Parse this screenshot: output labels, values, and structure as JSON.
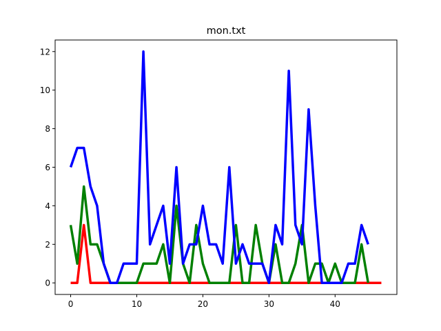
{
  "chart_data": {
    "type": "line",
    "title": "mon.txt",
    "xlabel": "",
    "ylabel": "",
    "xlim": [
      -2.35,
      49.35
    ],
    "ylim": [
      -0.6,
      12.6
    ],
    "xticks": [
      0,
      10,
      20,
      30,
      40
    ],
    "yticks": [
      0,
      2,
      4,
      6,
      8,
      10,
      12
    ],
    "grid": false,
    "legend": false,
    "series": [
      {
        "color": "#0000ff",
        "x": [
          0,
          1,
          2,
          3,
          4,
          5,
          6,
          7,
          8,
          9,
          10,
          11,
          12,
          13,
          14,
          15,
          16,
          17,
          18,
          19,
          20,
          21,
          22,
          23,
          24,
          25,
          26,
          27,
          28,
          29,
          30,
          31,
          32,
          33,
          34,
          35,
          36,
          37,
          38,
          39,
          40,
          41,
          42,
          43,
          44,
          45
        ],
        "y": [
          6,
          7,
          7,
          5,
          4,
          1,
          0,
          0,
          1,
          1,
          1,
          12,
          2,
          3,
          4,
          1,
          6,
          1,
          2,
          2,
          4,
          2,
          2,
          1,
          6,
          1,
          2,
          1,
          1,
          1,
          0,
          3,
          2,
          11,
          3,
          2,
          9,
          4,
          0,
          0,
          0,
          0,
          1,
          1,
          3,
          2
        ]
      },
      {
        "color": "#008000",
        "x": [
          0,
          1,
          2,
          3,
          4,
          5,
          6,
          7,
          8,
          9,
          10,
          11,
          12,
          13,
          14,
          15,
          16,
          17,
          18,
          19,
          20,
          21,
          22,
          23,
          24,
          25,
          26,
          27,
          28,
          29,
          30,
          31,
          32,
          33,
          34,
          35,
          36,
          37,
          38,
          39,
          40,
          41,
          42,
          43,
          44,
          45
        ],
        "y": [
          3,
          1,
          5,
          2,
          2,
          1,
          0,
          0,
          0,
          0,
          0,
          1,
          1,
          1,
          2,
          0,
          4,
          1,
          0,
          3,
          1,
          0,
          0,
          0,
          0,
          3,
          0,
          0,
          3,
          1,
          0,
          2,
          0,
          0,
          1,
          3,
          0,
          1,
          1,
          0,
          1,
          0,
          0,
          0,
          2,
          0
        ]
      },
      {
        "color": "#ff0000",
        "x": [
          0,
          1,
          2,
          3,
          4,
          5,
          6,
          7,
          8,
          9,
          10,
          11,
          12,
          13,
          14,
          15,
          16,
          17,
          18,
          19,
          20,
          21,
          22,
          23,
          24,
          25,
          26,
          27,
          28,
          29,
          30,
          31,
          32,
          33,
          34,
          35,
          36,
          37,
          38,
          39,
          40,
          41,
          42,
          43,
          44,
          45,
          46,
          47
        ],
        "y": [
          0,
          0,
          3,
          0,
          0,
          0,
          0,
          0,
          0,
          0,
          0,
          0,
          0,
          0,
          0,
          0,
          0,
          0,
          0,
          0,
          0,
          0,
          0,
          0,
          0,
          0,
          0,
          0,
          0,
          0,
          0,
          0,
          0,
          0,
          0,
          0,
          0,
          0,
          0,
          0,
          0,
          0,
          0,
          0,
          0,
          0,
          0,
          0
        ]
      }
    ]
  }
}
